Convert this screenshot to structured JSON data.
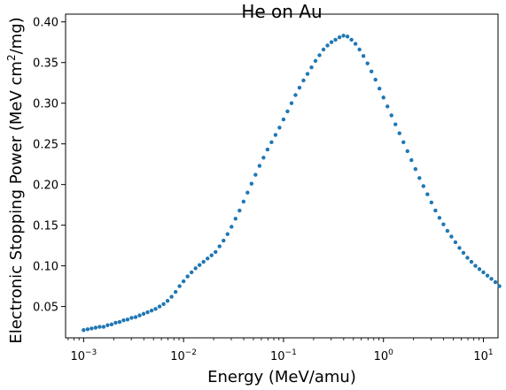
{
  "chart_data": {
    "type": "scatter",
    "title": "He on Au",
    "xlabel": "Energy (MeV/amu)",
    "ylabel": "Electronic Stopping Power (MeV cm²/mg)",
    "ylabel_parts": {
      "pre": "Electronic Stopping Power (MeV cm",
      "sup": "2",
      "post": "/mg)"
    },
    "xscale": "log",
    "xlim": [
      0.00066,
      14.0
    ],
    "ylim": [
      0.0115,
      0.4095
    ],
    "x_ticks": [
      {
        "value": 0.001,
        "base": "10",
        "exp": "−3"
      },
      {
        "value": 0.01,
        "base": "10",
        "exp": "−2"
      },
      {
        "value": 0.1,
        "base": "10",
        "exp": "−1"
      },
      {
        "value": 1,
        "base": "10",
        "exp": "0"
      },
      {
        "value": 10,
        "base": "10",
        "exp": "1"
      }
    ],
    "y_ticks": [
      {
        "value": 0.05,
        "label": "0.05"
      },
      {
        "value": 0.1,
        "label": "0.10"
      },
      {
        "value": 0.15,
        "label": "0.15"
      },
      {
        "value": 0.2,
        "label": "0.20"
      },
      {
        "value": 0.25,
        "label": "0.25"
      },
      {
        "value": 0.3,
        "label": "0.30"
      },
      {
        "value": 0.35,
        "label": "0.35"
      },
      {
        "value": 0.4,
        "label": "0.40"
      }
    ],
    "grid": false,
    "marker_color": "#1f77b4",
    "log10_x_start": -3,
    "log10_x_step": 0.04,
    "y": [
      0.021,
      0.022,
      0.023,
      0.024,
      0.025,
      0.025,
      0.027,
      0.028,
      0.03,
      0.031,
      0.033,
      0.034,
      0.036,
      0.037,
      0.039,
      0.041,
      0.043,
      0.045,
      0.047,
      0.05,
      0.053,
      0.057,
      0.062,
      0.068,
      0.075,
      0.081,
      0.087,
      0.092,
      0.097,
      0.101,
      0.105,
      0.109,
      0.113,
      0.117,
      0.124,
      0.131,
      0.139,
      0.148,
      0.158,
      0.168,
      0.179,
      0.19,
      0.201,
      0.212,
      0.223,
      0.233,
      0.243,
      0.252,
      0.261,
      0.27,
      0.28,
      0.29,
      0.3,
      0.31,
      0.319,
      0.328,
      0.336,
      0.344,
      0.352,
      0.359,
      0.366,
      0.371,
      0.375,
      0.378,
      0.381,
      0.383,
      0.382,
      0.378,
      0.373,
      0.366,
      0.358,
      0.349,
      0.339,
      0.329,
      0.318,
      0.307,
      0.296,
      0.285,
      0.274,
      0.263,
      0.252,
      0.241,
      0.23,
      0.219,
      0.208,
      0.198,
      0.188,
      0.178,
      0.168,
      0.159,
      0.151,
      0.143,
      0.136,
      0.129,
      0.122,
      0.116,
      0.11,
      0.105,
      0.1,
      0.096,
      0.092,
      0.088,
      0.084,
      0.08,
      0.075
    ]
  }
}
